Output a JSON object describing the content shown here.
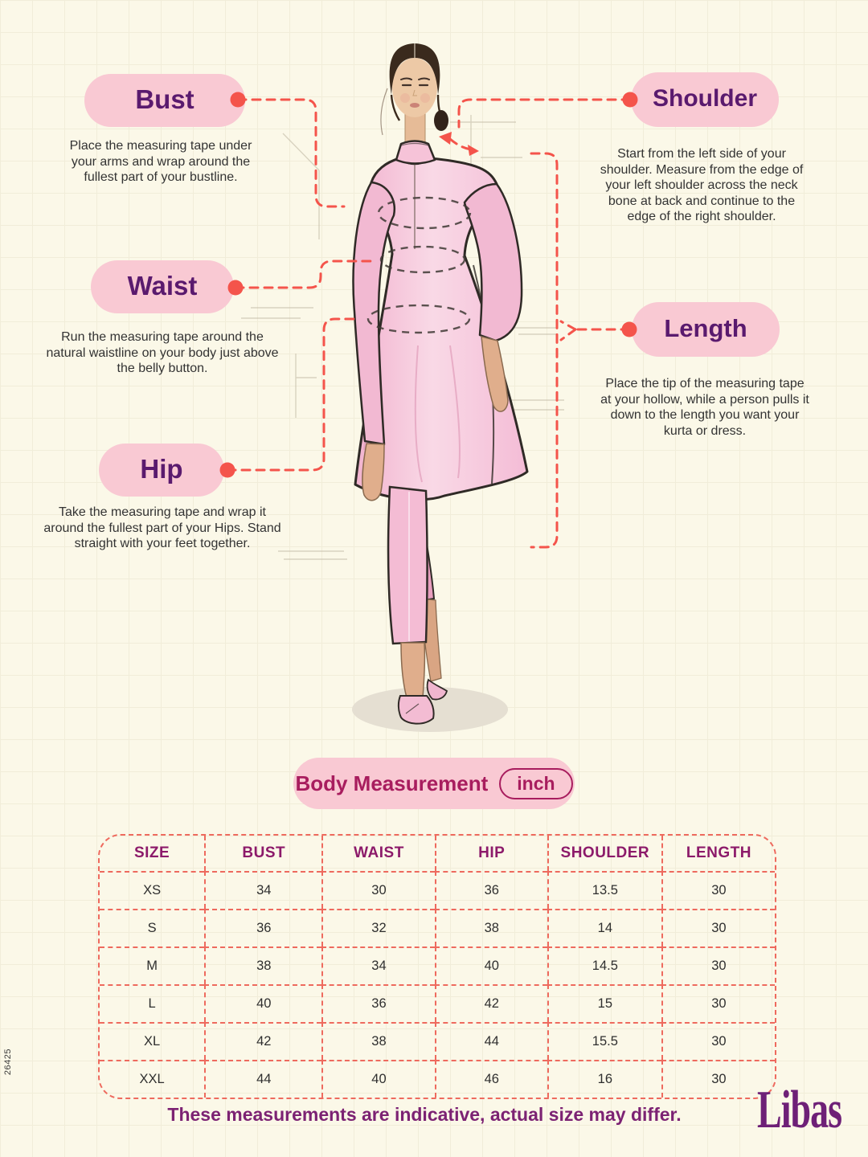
{
  "annotations": {
    "bust": {
      "label": "Bust",
      "description": "Place the measuring tape under your arms and wrap around the fullest part of your bustline."
    },
    "waist": {
      "label": "Waist",
      "description": "Run the measuring tape around the natural waistline on your body just above the belly button."
    },
    "hip": {
      "label": "Hip",
      "description": "Take the measuring tape and wrap it around the fullest part of your Hips. Stand straight with your feet together."
    },
    "shoulder": {
      "label": "Shoulder",
      "description": "Start from the left side of your shoulder. Measure from the edge of your left shoulder across the neck bone at back and continue to the edge of the right shoulder."
    },
    "length": {
      "label": "Length",
      "description": "Place the tip of the measuring tape at your hollow, while a person pulls it down to the length you want your kurta or dress."
    }
  },
  "table_header": {
    "title": "Body Measurement",
    "unit": "inch"
  },
  "sizing_table": {
    "columns": [
      "SIZE",
      "BUST",
      "WAIST",
      "HIP",
      "SHOULDER",
      "LENGTH"
    ],
    "rows": [
      [
        "XS",
        "34",
        "30",
        "36",
        "13.5",
        "30"
      ],
      [
        "S",
        "36",
        "32",
        "38",
        "14",
        "30"
      ],
      [
        "M",
        "38",
        "34",
        "40",
        "14.5",
        "30"
      ],
      [
        "L",
        "40",
        "36",
        "42",
        "15",
        "30"
      ],
      [
        "XL",
        "42",
        "38",
        "44",
        "15.5",
        "30"
      ],
      [
        "XXL",
        "44",
        "40",
        "46",
        "16",
        "30"
      ]
    ]
  },
  "footer": {
    "note": "These measurements are indicative, actual size may differ.",
    "brand": "Libas",
    "serial": "26425"
  },
  "colors": {
    "background": "#fbf8e8",
    "pill_pink": "#f9c9d3",
    "label_purple": "#5a1a6e",
    "crimson": "#a81d5e",
    "table_header_purple": "#8c1a6a",
    "dashed_red": "#f4544b",
    "table_border": "#ee6a5e",
    "footer_purple": "#7c2273"
  },
  "figure": {
    "illustration": "fashion-sketch-woman-in-pink-kurta-with-measurement-ellipses"
  }
}
